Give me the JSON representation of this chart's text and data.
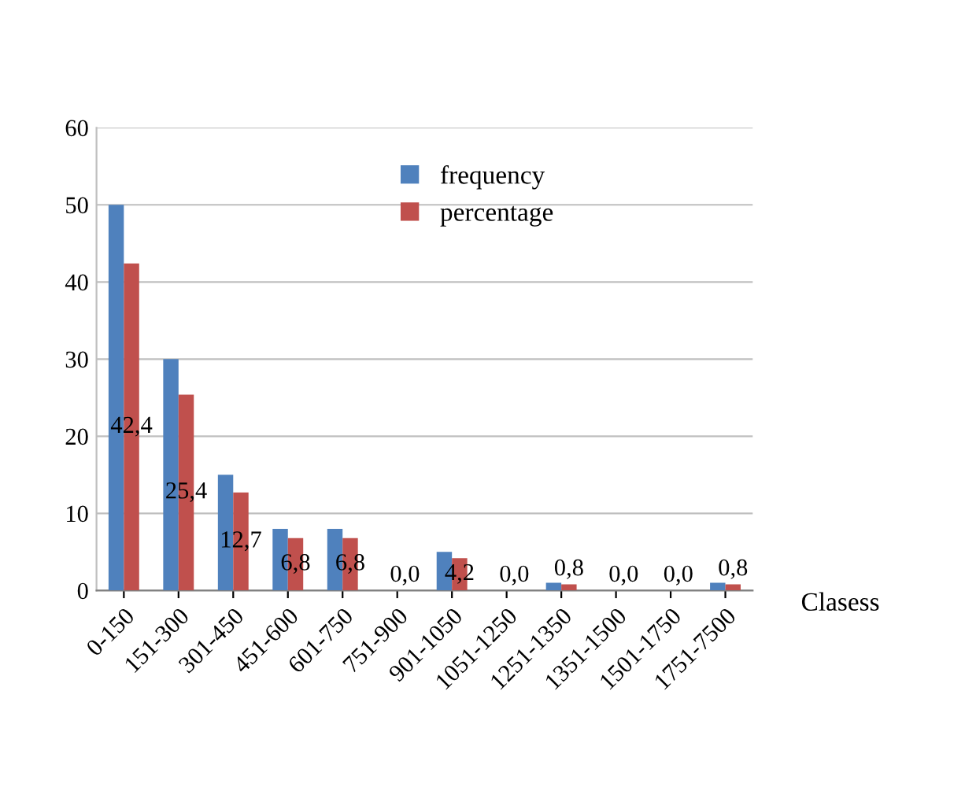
{
  "chart_data": {
    "type": "bar",
    "xlabel": "Clasess",
    "categories": [
      "0-150",
      "151-300",
      "301-450",
      "451-600",
      "601-750",
      "751-900",
      "901-1050",
      "1051-1250",
      "1251-1350",
      "1351-1500",
      "1501-1750",
      "1751-7500"
    ],
    "series": [
      {
        "name": "frequency",
        "color": "#4f81bd",
        "values": [
          50,
          30,
          15,
          8,
          8,
          0,
          5,
          0,
          1,
          0,
          0,
          1
        ]
      },
      {
        "name": "percentage",
        "color": "#c0504d",
        "values": [
          42.4,
          25.4,
          12.7,
          6.8,
          6.8,
          0,
          4.2,
          0,
          0.8,
          0,
          0,
          0.8
        ],
        "value_labels": [
          "42,4",
          "25,4",
          "12,7",
          "6,8",
          "6,8",
          "0,0",
          "4,2",
          "0,0",
          "0,8",
          "0,0",
          "0,0",
          "0,8"
        ]
      }
    ],
    "ylim": [
      0,
      60
    ],
    "yticks": [
      0,
      10,
      20,
      30,
      40,
      50,
      60
    ],
    "grid": "y",
    "legend": "top"
  }
}
